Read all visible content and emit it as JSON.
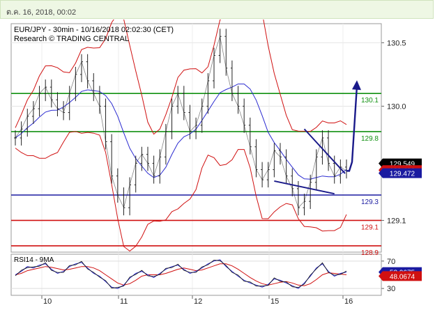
{
  "header": {
    "timestamp": "ต.ค. 16, 2018, 00:02"
  },
  "chart_data": {
    "type": "line",
    "title": "EUR/JPY - 30min - 10/16/2018 02:02:30 (CET)",
    "subtitle": "Research © TRADING CENTRAL",
    "x_ticks": [
      "10",
      "11",
      "12",
      "15",
      "16"
    ],
    "ylim": [
      128.85,
      130.65
    ],
    "y_ticks": [
      {
        "value": 130.5,
        "label": "130.5"
      },
      {
        "value": 130.0,
        "label": "130.0"
      },
      {
        "value": 129.1,
        "label": "129.1"
      }
    ],
    "levels": [
      {
        "value": 130.1,
        "label": "130.1",
        "color": "#109010"
      },
      {
        "value": 129.8,
        "label": "129.8",
        "color": "#109010"
      },
      {
        "value": 129.3,
        "label": "129.3",
        "color": "#1a1aa0"
      },
      {
        "value": 129.1,
        "label": "129.1",
        "color": "#d01010"
      },
      {
        "value": 128.9,
        "label": "128.9",
        "color": "#d01010"
      }
    ],
    "price_flags": [
      {
        "value": 129.549,
        "label": "129.549",
        "bg": "#000000",
        "fg": "#ffffff"
      },
      {
        "value": 129.496,
        "label": "129.496",
        "bg": "#d01010",
        "fg": "#ffffff"
      },
      {
        "value": 129.472,
        "label": "129.472",
        "bg": "#1a1aa0",
        "fg": "#ffffff"
      }
    ],
    "price": [
      129.75,
      129.82,
      129.92,
      129.98,
      130.1,
      130.15,
      130.05,
      129.98,
      129.95,
      130.1,
      130.25,
      130.35,
      130.2,
      130.1,
      130.0,
      129.72,
      129.45,
      129.3,
      129.2,
      129.38,
      129.55,
      129.62,
      129.55,
      129.45,
      129.6,
      129.8,
      130.0,
      130.1,
      129.95,
      129.8,
      129.85,
      130.0,
      130.2,
      130.4,
      130.55,
      130.3,
      130.1,
      130.0,
      129.85,
      129.68,
      129.5,
      129.42,
      129.5,
      129.65,
      129.6,
      129.45,
      129.35,
      129.2,
      129.25,
      129.4,
      129.6,
      129.75,
      129.55,
      129.45,
      129.52,
      129.49
    ],
    "rsi_panel": {
      "label": "RSI14 - 9MA",
      "ylim": [
        20,
        80
      ],
      "y_ticks": [
        {
          "value": 70,
          "label": "70"
        },
        {
          "value": 30,
          "label": "30"
        }
      ],
      "rsi": [
        50,
        55,
        62,
        60,
        64,
        66,
        58,
        52,
        55,
        62,
        66,
        68,
        60,
        52,
        48,
        40,
        32,
        30,
        35,
        45,
        52,
        55,
        50,
        46,
        52,
        58,
        62,
        64,
        58,
        52,
        55,
        60,
        66,
        70,
        72,
        62,
        55,
        48,
        42,
        38,
        35,
        32,
        36,
        44,
        42,
        38,
        34,
        30,
        38,
        48,
        60,
        66,
        55,
        48,
        52,
        54
      ],
      "ma": [
        50,
        52,
        56,
        58,
        60,
        62,
        61,
        59,
        57,
        58,
        60,
        62,
        62,
        60,
        56,
        50,
        44,
        38,
        35,
        37,
        42,
        48,
        50,
        50,
        50,
        52,
        55,
        58,
        60,
        58,
        56,
        57,
        60,
        63,
        66,
        66,
        63,
        58,
        52,
        46,
        41,
        37,
        35,
        37,
        39,
        40,
        38,
        35,
        34,
        37,
        43,
        50,
        53,
        52,
        51,
        50
      ],
      "flags": [
        {
          "value": 53.9675,
          "label": "53.9675",
          "bg": "#1a1aa0",
          "fg": "#ffffff"
        },
        {
          "value": 48.0674,
          "label": "48.0674",
          "bg": "#d01010",
          "fg": "#ffffff"
        }
      ]
    },
    "colors": {
      "price": "#222222",
      "bollinger": "#d01010",
      "moving_average": "#2a2ad0",
      "forecast": "#1a1a8a",
      "rsi": "#2a2ad0",
      "rsi_ma": "#d01010",
      "rsi_line": "#111111"
    }
  }
}
